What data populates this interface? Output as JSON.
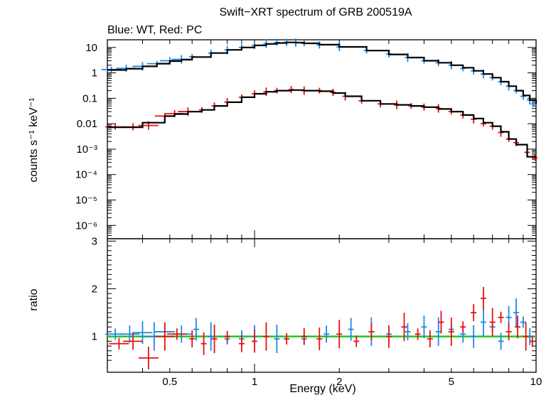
{
  "chart_data": [
    {
      "type": "scatter",
      "panel": "spectrum",
      "title": "Swift−XRT spectrum of GRB 200519A",
      "subtitle": "Blue: WT, Red: PC",
      "ylabel": "counts s⁻¹ keV⁻¹",
      "xscale": "log",
      "yscale": "log",
      "xlim": [
        0.3,
        10
      ],
      "ylim": [
        3e-07,
        20
      ],
      "x_ticks": [
        0.5,
        1,
        2,
        5,
        10
      ],
      "y_ticks": [
        {
          "value": 10,
          "label": "10"
        },
        {
          "value": 1,
          "label": "1"
        },
        {
          "value": 0.1,
          "label": "0.1"
        },
        {
          "value": 0.01,
          "label": "0.01"
        },
        {
          "value": 0.001,
          "label": "10⁻³"
        },
        {
          "value": 0.0001,
          "label": "10⁻⁴"
        },
        {
          "value": 1e-05,
          "label": "10⁻⁵"
        },
        {
          "value": 1e-06,
          "label": "10⁻⁶"
        }
      ],
      "series": [
        {
          "color": "#1a88e8",
          "points": [
            [
              0.31,
              1.35
            ],
            [
              0.35,
              1.5
            ],
            [
              0.4,
              1.8
            ],
            [
              0.45,
              2.3
            ],
            [
              0.5,
              3.0
            ],
            [
              0.55,
              3.4
            ],
            [
              0.6,
              4.3
            ],
            [
              0.7,
              6.0
            ],
            [
              0.8,
              8.0
            ],
            [
              0.9,
              10.0
            ],
            [
              1.0,
              12.0
            ],
            [
              1.1,
              14.0
            ],
            [
              1.2,
              15.5
            ],
            [
              1.3,
              16.0
            ],
            [
              1.4,
              15.5
            ],
            [
              1.5,
              14.5
            ],
            [
              1.7,
              12.5
            ],
            [
              2.0,
              10.5
            ],
            [
              2.5,
              7.5
            ],
            [
              3.0,
              5.5
            ],
            [
              3.5,
              4.0
            ],
            [
              4.0,
              3.0
            ],
            [
              4.5,
              2.5
            ],
            [
              5.0,
              2.0
            ],
            [
              5.5,
              1.5
            ],
            [
              6.0,
              1.2
            ],
            [
              6.5,
              0.9
            ],
            [
              7.0,
              0.65
            ],
            [
              7.5,
              0.45
            ],
            [
              8.0,
              0.3
            ],
            [
              8.5,
              0.2
            ],
            [
              9.0,
              0.12
            ],
            [
              9.5,
              0.085
            ],
            [
              9.8,
              0.06
            ]
          ]
        },
        {
          "color": "#e81010",
          "points": [
            [
              0.32,
              0.0075
            ],
            [
              0.37,
              0.0075
            ],
            [
              0.42,
              0.0085
            ],
            [
              0.48,
              0.02
            ],
            [
              0.52,
              0.025
            ],
            [
              0.58,
              0.03
            ],
            [
              0.65,
              0.035
            ],
            [
              0.72,
              0.05
            ],
            [
              0.8,
              0.07
            ],
            [
              0.9,
              0.11
            ],
            [
              1.0,
              0.15
            ],
            [
              1.1,
              0.18
            ],
            [
              1.2,
              0.2
            ],
            [
              1.35,
              0.22
            ],
            [
              1.5,
              0.2
            ],
            [
              1.7,
              0.2
            ],
            [
              1.9,
              0.17
            ],
            [
              2.1,
              0.12
            ],
            [
              2.4,
              0.08
            ],
            [
              2.8,
              0.06
            ],
            [
              3.2,
              0.055
            ],
            [
              3.6,
              0.05
            ],
            [
              4.0,
              0.045
            ],
            [
              4.5,
              0.04
            ],
            [
              5.0,
              0.03
            ],
            [
              5.5,
              0.022
            ],
            [
              6.0,
              0.015
            ],
            [
              6.5,
              0.01
            ],
            [
              7.0,
              0.008
            ],
            [
              7.5,
              0.0045
            ],
            [
              8.0,
              0.0025
            ],
            [
              8.5,
              0.0018
            ],
            [
              9.3,
              0.00075
            ],
            [
              9.9,
              0.00045
            ]
          ]
        }
      ],
      "model": [
        {
          "color": "#000000",
          "steps": [
            [
              0.3,
              1.3
            ],
            [
              0.35,
              1.45
            ],
            [
              0.4,
              1.8
            ],
            [
              0.45,
              2.3
            ],
            [
              0.5,
              2.9
            ],
            [
              0.55,
              3.3
            ],
            [
              0.6,
              4.2
            ],
            [
              0.7,
              6.0
            ],
            [
              0.8,
              8.0
            ],
            [
              0.9,
              10.0
            ],
            [
              1.0,
              12.0
            ],
            [
              1.1,
              13.8
            ],
            [
              1.2,
              15.0
            ],
            [
              1.3,
              15.8
            ],
            [
              1.4,
              15.5
            ],
            [
              1.5,
              14.5
            ],
            [
              1.7,
              12.8
            ],
            [
              2.0,
              10.5
            ],
            [
              2.5,
              7.5
            ],
            [
              3.0,
              5.3
            ],
            [
              3.5,
              4.0
            ],
            [
              4.0,
              3.0
            ],
            [
              4.5,
              2.5
            ],
            [
              5.0,
              2.0
            ],
            [
              5.5,
              1.6
            ],
            [
              6.0,
              1.2
            ],
            [
              6.5,
              0.9
            ],
            [
              7.0,
              0.65
            ],
            [
              7.5,
              0.45
            ],
            [
              8.0,
              0.3
            ],
            [
              8.5,
              0.2
            ],
            [
              9.0,
              0.13
            ],
            [
              9.5,
              0.085
            ],
            [
              10.0,
              0.06
            ]
          ]
        },
        {
          "color": "#000000",
          "steps": [
            [
              0.3,
              0.0072
            ],
            [
              0.37,
              0.0072
            ],
            [
              0.4,
              0.011
            ],
            [
              0.48,
              0.02
            ],
            [
              0.52,
              0.024
            ],
            [
              0.58,
              0.03
            ],
            [
              0.65,
              0.035
            ],
            [
              0.72,
              0.05
            ],
            [
              0.8,
              0.07
            ],
            [
              0.9,
              0.11
            ],
            [
              1.0,
              0.15
            ],
            [
              1.1,
              0.18
            ],
            [
              1.2,
              0.2
            ],
            [
              1.35,
              0.21
            ],
            [
              1.5,
              0.2
            ],
            [
              1.7,
              0.19
            ],
            [
              1.9,
              0.16
            ],
            [
              2.1,
              0.12
            ],
            [
              2.4,
              0.08
            ],
            [
              2.8,
              0.06
            ],
            [
              3.2,
              0.055
            ],
            [
              3.6,
              0.05
            ],
            [
              4.0,
              0.045
            ],
            [
              4.5,
              0.038
            ],
            [
              5.0,
              0.03
            ],
            [
              5.5,
              0.022
            ],
            [
              6.0,
              0.016
            ],
            [
              6.5,
              0.011
            ],
            [
              7.0,
              0.008
            ],
            [
              7.5,
              0.0048
            ],
            [
              8.0,
              0.0025
            ],
            [
              8.5,
              0.0015
            ],
            [
              9.3,
              0.0005
            ],
            [
              10.0,
              0.0005
            ]
          ]
        }
      ]
    },
    {
      "type": "scatter",
      "panel": "ratio",
      "xlabel": "Energy (keV)",
      "ylabel": "ratio",
      "xscale": "log",
      "xlim": [
        0.3,
        10
      ],
      "ylim": [
        0.25,
        3.05
      ],
      "y_ticks": [
        {
          "value": 1,
          "label": "1"
        },
        {
          "value": 2,
          "label": "2"
        },
        {
          "value": 3,
          "label": "3"
        }
      ],
      "x_ticks": [
        {
          "value": 0.5,
          "label": "0.5"
        },
        {
          "value": 1,
          "label": "1"
        },
        {
          "value": 2,
          "label": "2"
        },
        {
          "value": 5,
          "label": "5"
        },
        {
          "value": 10,
          "label": "10"
        }
      ],
      "reference_line": {
        "value": 1,
        "color": "#22c422"
      },
      "series": [
        {
          "color": "#1a88e8",
          "points": [
            [
              0.32,
              1.05
            ],
            [
              0.36,
              1.05
            ],
            [
              0.4,
              1.08
            ],
            [
              0.44,
              1.0
            ],
            [
              0.48,
              1.1
            ],
            [
              0.55,
              1.05
            ],
            [
              0.62,
              1.15
            ],
            [
              0.7,
              1.0
            ],
            [
              0.8,
              0.95
            ],
            [
              0.9,
              0.95
            ],
            [
              1.0,
              1.0
            ],
            [
              1.2,
              0.95
            ],
            [
              1.5,
              0.95
            ],
            [
              1.8,
              1.05
            ],
            [
              2.2,
              1.15
            ],
            [
              2.6,
              1.1
            ],
            [
              3.0,
              1.05
            ],
            [
              3.5,
              1.1
            ],
            [
              4.0,
              1.2
            ],
            [
              4.5,
              1.1
            ],
            [
              5.0,
              1.15
            ],
            [
              5.5,
              1.05
            ],
            [
              6.0,
              1.0
            ],
            [
              6.5,
              1.3
            ],
            [
              7.0,
              1.2
            ],
            [
              7.5,
              0.9
            ],
            [
              8.0,
              1.4
            ],
            [
              8.5,
              1.5
            ],
            [
              9.0,
              1.3
            ],
            [
              9.5,
              1.0
            ]
          ]
        },
        {
          "color": "#e81010",
          "points": [
            [
              0.33,
              0.85
            ],
            [
              0.37,
              0.9
            ],
            [
              0.42,
              0.55
            ],
            [
              0.48,
              1.0
            ],
            [
              0.53,
              1.05
            ],
            [
              0.6,
              0.95
            ],
            [
              0.66,
              0.85
            ],
            [
              0.72,
              0.95
            ],
            [
              0.8,
              1.0
            ],
            [
              0.9,
              0.85
            ],
            [
              1.0,
              0.9
            ],
            [
              1.1,
              1.0
            ],
            [
              1.3,
              0.95
            ],
            [
              1.5,
              1.0
            ],
            [
              1.7,
              0.95
            ],
            [
              2.0,
              1.05
            ],
            [
              2.3,
              0.9
            ],
            [
              2.6,
              1.1
            ],
            [
              3.0,
              1.0
            ],
            [
              3.4,
              1.2
            ],
            [
              3.8,
              1.05
            ],
            [
              4.2,
              0.95
            ],
            [
              4.6,
              1.3
            ],
            [
              5.0,
              1.1
            ],
            [
              5.5,
              1.2
            ],
            [
              6.0,
              1.5
            ],
            [
              6.5,
              1.8
            ],
            [
              7.0,
              1.3
            ],
            [
              7.5,
              1.4
            ],
            [
              8.0,
              1.1
            ],
            [
              8.6,
              1.2
            ],
            [
              9.2,
              1.0
            ],
            [
              9.7,
              0.9
            ]
          ]
        }
      ]
    }
  ]
}
